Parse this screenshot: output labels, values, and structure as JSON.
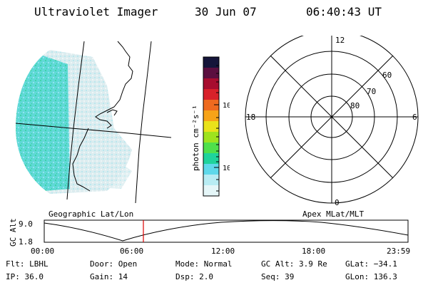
{
  "header": {
    "instrument": "Ultraviolet Imager",
    "date": "30 Jun 07",
    "time": "06:40:43 UT"
  },
  "colorbar": {
    "unit_label": "photon cm⁻²s⁻¹",
    "ticks": [
      "100",
      "10"
    ],
    "colors": [
      "#15153a",
      "#5b0e3f",
      "#a70d2f",
      "#d8212a",
      "#ee6a1f",
      "#f7a318",
      "#e9e21b",
      "#9ee31e",
      "#4fe04b",
      "#1fd39c",
      "#5fd9ea",
      "#b8ecf3",
      "#e5f6f8"
    ]
  },
  "polar": {
    "mlt_labels": {
      "top": "12",
      "left": "18",
      "right": "6",
      "bottom": "0"
    },
    "lat_labels": [
      "60",
      "70",
      "80"
    ]
  },
  "timeline": {
    "left_title": "Geographic Lat/Lon",
    "right_title": "Apex MLat/MLT",
    "axis_label": "GC Alt",
    "y_high": "9.0",
    "y_low": "1.8",
    "x_ticks": [
      "00:00",
      "06:00",
      "12:00",
      "18:00",
      "23:59"
    ],
    "marker_color": "#dd0000"
  },
  "status": {
    "flt": "Flt: LBHL",
    "ip": "IP: 36.0",
    "door": "Door: Open",
    "gain": "Gain: 14",
    "mode": "Mode: Normal",
    "dsp": "Dsp:    2.0",
    "gc_alt": "GC Alt: 3.9 Re",
    "seq": "Seq: 39",
    "glat": "GLat: −34.1",
    "glon": "GLon: 136.3"
  }
}
